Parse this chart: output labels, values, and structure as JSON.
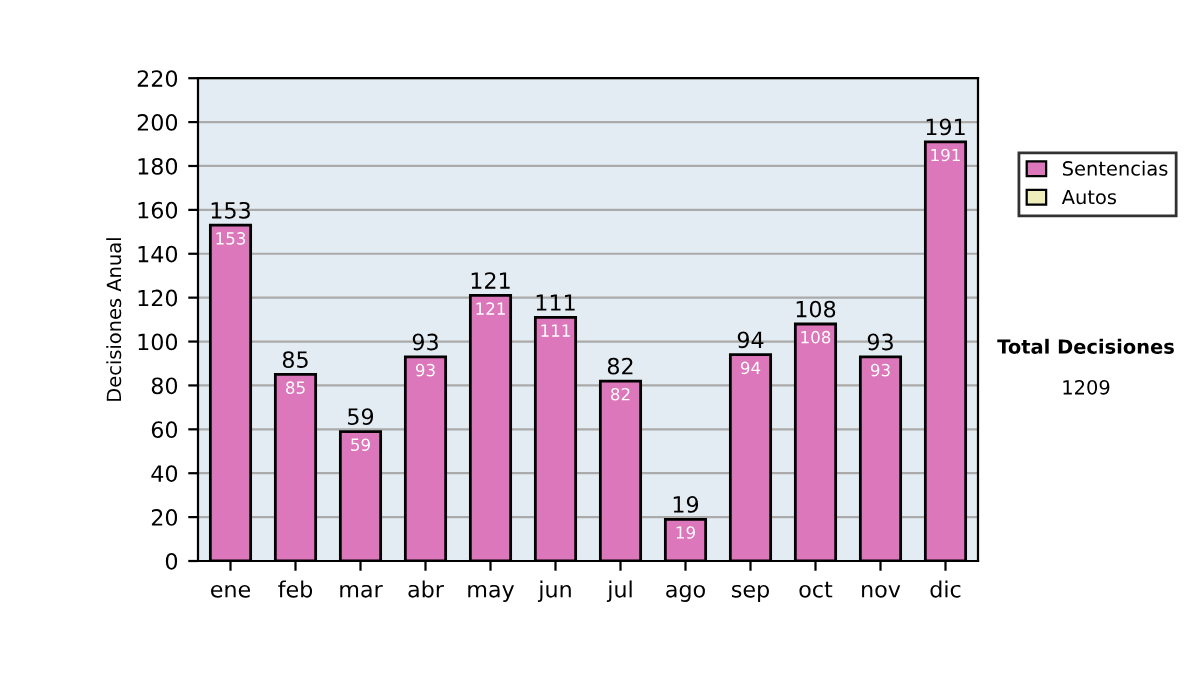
{
  "chart_data": {
    "type": "bar",
    "ylabel": "Decisiones Anual",
    "categories": [
      "ene",
      "feb",
      "mar",
      "abr",
      "may",
      "jun",
      "jul",
      "ago",
      "sep",
      "oct",
      "nov",
      "dic"
    ],
    "stacked": true,
    "series": [
      {
        "name": "Sentencias",
        "color": "#dd77bb",
        "values": [
          153,
          85,
          59,
          93,
          121,
          111,
          82,
          19,
          94,
          108,
          93,
          191
        ],
        "value_labels": [
          "153",
          "85",
          "59",
          "93",
          "121",
          "111",
          "82",
          "19",
          "94",
          "108",
          "93",
          "191"
        ]
      },
      {
        "name": "Autos",
        "color": "#eeeebb",
        "values": [
          0,
          0,
          0,
          0,
          0,
          0,
          0,
          0,
          0,
          0,
          0,
          0
        ]
      }
    ],
    "totals": [
      "153",
      "85",
      "59",
      "93",
      "121",
      "111",
      "82",
      "19",
      "94",
      "108",
      "93",
      "191"
    ],
    "ylim": [
      0,
      220
    ],
    "yticks": [
      0,
      20,
      40,
      60,
      80,
      100,
      120,
      140,
      160,
      180,
      200,
      220
    ],
    "grid": "y",
    "legend": "right",
    "annotations": [
      "Total Decisiones",
      "1209"
    ]
  }
}
